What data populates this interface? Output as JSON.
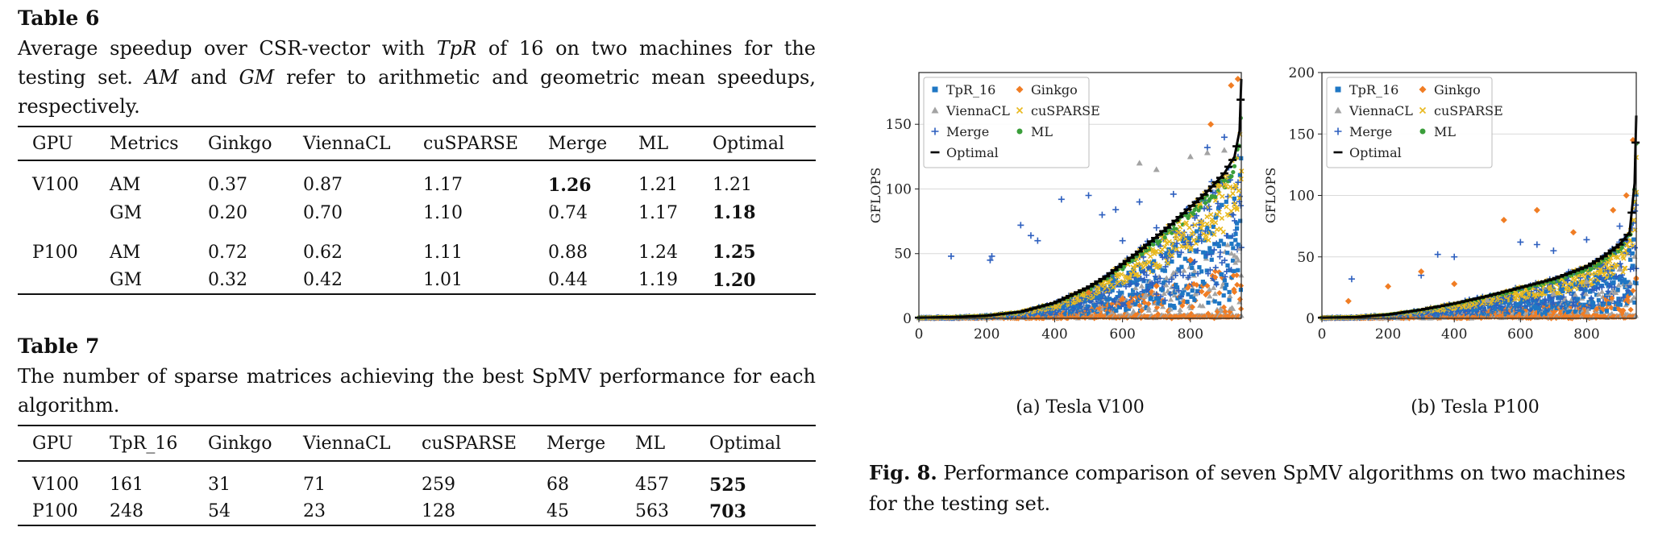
{
  "table6": {
    "label": "Table 6",
    "caption_parts": [
      {
        "t": "Average speedup over CSR-vector with ",
        "i": false
      },
      {
        "t": "TpR",
        "i": true
      },
      {
        "t": " of 16 on two machines for the testing set. ",
        "i": false
      },
      {
        "t": "AM",
        "i": true
      },
      {
        "t": " and ",
        "i": false
      },
      {
        "t": "GM",
        "i": true
      },
      {
        "t": " refer to arithmetic and geometric mean speedups, respectively.",
        "i": false
      }
    ],
    "headers": [
      "GPU",
      "Metrics",
      "Ginkgo",
      "ViennaCL",
      "cuSPARSE",
      "Merge",
      "ML",
      "Optimal"
    ],
    "rows": [
      {
        "gpu": "V100",
        "metric": "AM",
        "vals": [
          "0.37",
          "0.87",
          "1.17",
          "1.26",
          "1.21",
          "1.21"
        ],
        "bold": 3
      },
      {
        "gpu": "",
        "metric": "GM",
        "vals": [
          "0.20",
          "0.70",
          "1.10",
          "0.74",
          "1.17",
          "1.18"
        ],
        "bold": 5
      },
      {
        "gpu": "P100",
        "metric": "AM",
        "vals": [
          "0.72",
          "0.62",
          "1.11",
          "0.88",
          "1.24",
          "1.25"
        ],
        "bold": 5
      },
      {
        "gpu": "",
        "metric": "GM",
        "vals": [
          "0.32",
          "0.42",
          "1.01",
          "0.44",
          "1.19",
          "1.20"
        ],
        "bold": 5
      }
    ]
  },
  "table7": {
    "label": "Table 7",
    "caption": "The number of sparse matrices achieving the best SpMV performance for each algorithm.",
    "headers": [
      "GPU",
      "TpR_16",
      "Ginkgo",
      "ViennaCL",
      "cuSPARSE",
      "Merge",
      "ML",
      "Optimal"
    ],
    "rows": [
      {
        "gpu": "V100",
        "vals": [
          "161",
          "31",
          "71",
          "259",
          "68",
          "457",
          "525"
        ],
        "bold": 6
      },
      {
        "gpu": "P100",
        "vals": [
          "248",
          "54",
          "23",
          "128",
          "45",
          "563",
          "703"
        ],
        "bold": 6
      }
    ]
  },
  "figure": {
    "label": "Fig. 8.",
    "caption": "Performance comparison of seven SpMV algorithms on two machines for the testing set.",
    "legend": [
      {
        "name": "TpR_16",
        "marker": "square",
        "color": "#1f77c4"
      },
      {
        "name": "Ginkgo",
        "marker": "diamond",
        "color": "#f07d24"
      },
      {
        "name": "ViennaCL",
        "marker": "triangle",
        "color": "#a3a3a3"
      },
      {
        "name": "cuSPARSE",
        "marker": "x",
        "color": "#e8b920"
      },
      {
        "name": "Merge",
        "marker": "plus",
        "color": "#2d5fbf"
      },
      {
        "name": "ML",
        "marker": "circle",
        "color": "#3a9e3a"
      },
      {
        "name": "Optimal",
        "marker": "dash",
        "color": "#000000"
      }
    ]
  },
  "chart_data": [
    {
      "type": "scatter",
      "subtitle": "(a) Tesla V100",
      "ylabel": "GFLOPS",
      "xlim": [
        0,
        950
      ],
      "ylim": [
        0,
        190
      ],
      "xticks": [
        0,
        200,
        400,
        600,
        800
      ],
      "yticks": [
        0,
        50,
        100,
        150
      ],
      "grid": "horizontal",
      "legend_position": "top-left",
      "optimal_curve": [
        [
          0,
          0.5
        ],
        [
          100,
          1
        ],
        [
          200,
          2
        ],
        [
          300,
          5
        ],
        [
          400,
          12
        ],
        [
          500,
          24
        ],
        [
          550,
          32
        ],
        [
          600,
          42
        ],
        [
          650,
          52
        ],
        [
          700,
          63
        ],
        [
          750,
          74
        ],
        [
          800,
          86
        ],
        [
          850,
          98
        ],
        [
          900,
          112
        ],
        [
          930,
          125
        ],
        [
          945,
          145
        ],
        [
          950,
          185
        ]
      ],
      "series": [
        {
          "name": "Merge",
          "outliers": [
            [
              95,
              48
            ],
            [
              210,
              45
            ],
            [
              215,
              48
            ],
            [
              300,
              72
            ],
            [
              330,
              64
            ],
            [
              350,
              60
            ],
            [
              420,
              92
            ],
            [
              500,
              95
            ],
            [
              540,
              80
            ],
            [
              580,
              84
            ],
            [
              600,
              60
            ],
            [
              650,
              90
            ],
            [
              700,
              70
            ],
            [
              750,
              96
            ],
            [
              850,
              132
            ],
            [
              900,
              140
            ]
          ]
        },
        {
          "name": "Ginkgo",
          "outliers": [
            [
              500,
              20
            ],
            [
              600,
              15
            ],
            [
              700,
              25
            ],
            [
              800,
              45
            ],
            [
              860,
              150
            ],
            [
              920,
              180
            ],
            [
              940,
              185
            ]
          ]
        },
        {
          "name": "ViennaCL",
          "outliers": [
            [
              650,
              120
            ],
            [
              700,
              115
            ],
            [
              800,
              125
            ],
            [
              850,
              128
            ],
            [
              900,
              130
            ]
          ]
        }
      ]
    },
    {
      "type": "scatter",
      "subtitle": "(b) Tesla P100",
      "ylabel": "GFLOPS",
      "xlim": [
        0,
        950
      ],
      "ylim": [
        0,
        200
      ],
      "xticks": [
        0,
        200,
        400,
        600,
        800
      ],
      "yticks": [
        0,
        50,
        100,
        150,
        200
      ],
      "grid": "horizontal",
      "legend_position": "top-left",
      "optimal_curve": [
        [
          0,
          0.5
        ],
        [
          100,
          1
        ],
        [
          200,
          3
        ],
        [
          300,
          7
        ],
        [
          400,
          12
        ],
        [
          500,
          18
        ],
        [
          600,
          25
        ],
        [
          700,
          32
        ],
        [
          800,
          42
        ],
        [
          850,
          50
        ],
        [
          900,
          60
        ],
        [
          930,
          70
        ],
        [
          945,
          110
        ],
        [
          950,
          165
        ]
      ],
      "series": [
        {
          "name": "Merge",
          "outliers": [
            [
              90,
              32
            ],
            [
              300,
              35
            ],
            [
              350,
              52
            ],
            [
              400,
              50
            ],
            [
              600,
              62
            ],
            [
              650,
              60
            ],
            [
              700,
              55
            ],
            [
              800,
              64
            ],
            [
              900,
              75
            ]
          ]
        },
        {
          "name": "Ginkgo",
          "outliers": [
            [
              80,
              14
            ],
            [
              200,
              26
            ],
            [
              300,
              38
            ],
            [
              400,
              28
            ],
            [
              550,
              80
            ],
            [
              650,
              88
            ],
            [
              760,
              70
            ],
            [
              880,
              88
            ],
            [
              920,
              100
            ],
            [
              940,
              145
            ]
          ]
        },
        {
          "name": "ViennaCL",
          "outliers": [
            [
              500,
              15
            ],
            [
              700,
              20
            ],
            [
              800,
              30
            ],
            [
              900,
              40
            ]
          ]
        }
      ]
    }
  ]
}
